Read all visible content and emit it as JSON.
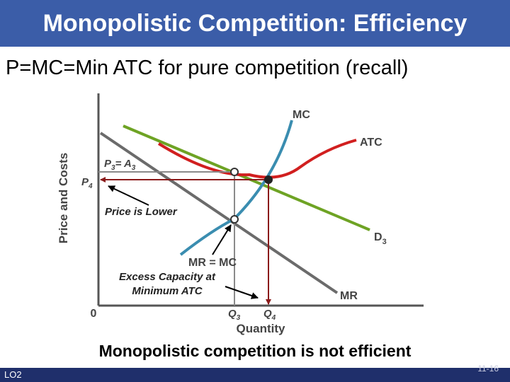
{
  "title": "Monopolistic Competition: Efficiency",
  "subtitle": "P=MC=Min ATC for pure competition (recall)",
  "diagram": {
    "y_axis_label": "Price and Costs",
    "x_axis_label": "Quantity",
    "origin_label": "0",
    "curves": {
      "mc": "MC",
      "atc": "ATC",
      "demand_main": "D",
      "demand_sub": "3",
      "mr": "MR"
    },
    "labels": {
      "p3_a3_main": "P",
      "p3_a3_sub1": "3",
      "p3_a3_mid": "= A",
      "p3_a3_sub2": "3",
      "p4_main": "P",
      "p4_sub": "4",
      "q3_main": "Q",
      "q3_sub": "3",
      "q4_main": "Q",
      "q4_sub": "4",
      "mr_eq_mc": "MR = MC",
      "price_lower": "Price is Lower",
      "excess_line1": "Excess Capacity at",
      "excess_line2": "Minimum ATC"
    },
    "colors": {
      "mc": "#3a8db0",
      "atc": "#d11f1f",
      "demand": "#6ea324",
      "mr": "#6b6b6b",
      "guides": "#8a1a1a",
      "axes": "#555555"
    }
  },
  "conclusion": "Monopolistic competition is not efficient",
  "footer": {
    "lo": "LO2",
    "page": "11-16"
  }
}
